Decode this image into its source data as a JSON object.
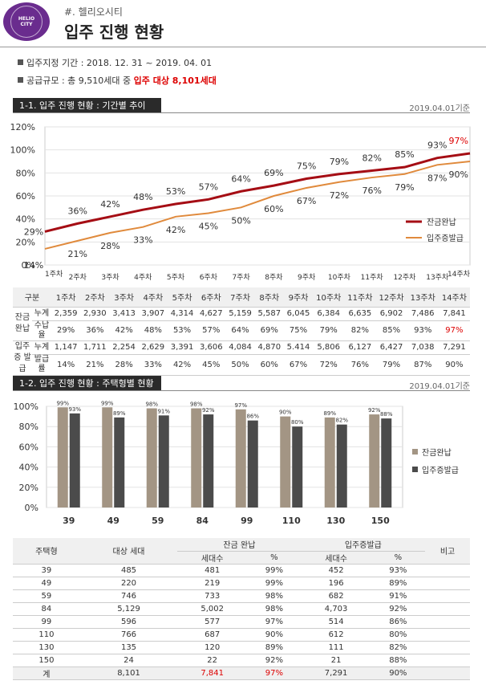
{
  "header": {
    "logo_lines": [
      "HELIO",
      "CITY"
    ],
    "brand": "#. 헬리오시티",
    "title": "입주 진행 현황"
  },
  "info": {
    "period": "입주지정 기간 : 2018. 12. 31 ~ 2019. 04. 01",
    "scale_prefix": "공급규모 : 총 9,510세대 중 ",
    "scale_highlight": "입주 대상 8,101세대"
  },
  "section1": {
    "label": "1-1. 입주 진행 현황 : 기간별 추이",
    "date": "2019.04.01기준"
  },
  "section2": {
    "label": "1-2. 입주 진행 현황 : 주택형별 현황",
    "date": "2019.04.01기준"
  },
  "chart_data": [
    {
      "type": "line",
      "categories": [
        "1주차",
        "2주차",
        "3주차",
        "4주차",
        "5주차",
        "6주차",
        "7주차",
        "8주차",
        "9주차",
        "10주차",
        "11주차",
        "12주차",
        "13주차",
        "14주차"
      ],
      "series": [
        {
          "name": "잔금완납",
          "values": [
            29,
            36,
            42,
            48,
            53,
            57,
            64,
            69,
            75,
            79,
            82,
            85,
            93,
            97
          ],
          "color": "#a50d14"
        },
        {
          "name": "입주증발급",
          "values": [
            14,
            21,
            28,
            33,
            42,
            45,
            50,
            60,
            67,
            72,
            76,
            79,
            87,
            90
          ],
          "color": "#e08a3c"
        }
      ],
      "ylim": [
        0,
        120
      ],
      "yticks": [
        "0%",
        "20%",
        "40%",
        "60%",
        "80%",
        "100%",
        "120%"
      ],
      "grid": true,
      "legend": "right"
    },
    {
      "type": "bar",
      "categories": [
        "39",
        "49",
        "59",
        "84",
        "99",
        "110",
        "130",
        "150"
      ],
      "series": [
        {
          "name": "잔금완납",
          "values": [
            99,
            99,
            98,
            98,
            97,
            90,
            89,
            92
          ],
          "color": "#a39584"
        },
        {
          "name": "입주증발급",
          "values": [
            93,
            89,
            91,
            92,
            86,
            80,
            82,
            88
          ],
          "color": "#4b4b4b"
        }
      ],
      "ylim": [
        0,
        100
      ],
      "yticks": [
        "0%",
        "20%",
        "40%",
        "60%",
        "80%",
        "100%"
      ],
      "grid": true,
      "legend": "right"
    }
  ],
  "table1": {
    "header": [
      "구분",
      "1주차",
      "2주차",
      "3주차",
      "4주차",
      "5주차",
      "6주차",
      "7주차",
      "8주차",
      "9주차",
      "10주차",
      "11주차",
      "12주차",
      "13주차",
      "14주차"
    ],
    "groups": [
      {
        "label": "잔금 완납",
        "rows": [
          {
            "sub": "누계",
            "cells": [
              "2,359",
              "2,930",
              "3,413",
              "3,907",
              "4,314",
              "4,627",
              "5,159",
              "5,587",
              "6,045",
              "6,384",
              "6,635",
              "6,902",
              "7,486",
              "7,841"
            ]
          },
          {
            "sub": "수납율",
            "cells": [
              "29%",
              "36%",
              "42%",
              "48%",
              "53%",
              "57%",
              "64%",
              "69%",
              "75%",
              "79%",
              "82%",
              "85%",
              "93%",
              "97%"
            ]
          }
        ]
      },
      {
        "label": "입주증 발급",
        "rows": [
          {
            "sub": "누계",
            "cells": [
              "1,147",
              "1,711",
              "2,254",
              "2,629",
              "3,391",
              "3,606",
              "4,084",
              "4,870",
              "5.414",
              "5,806",
              "6,127",
              "6,427",
              "7,038",
              "7,291"
            ]
          },
          {
            "sub": "발급률",
            "cells": [
              "14%",
              "21%",
              "28%",
              "33%",
              "42%",
              "45%",
              "50%",
              "60%",
              "67%",
              "72%",
              "76%",
              "79%",
              "87%",
              "90%"
            ]
          }
        ]
      }
    ]
  },
  "table2": {
    "h_type": "주택형",
    "h_target": "대상 세대",
    "h_paid": "잔금 완납",
    "h_cert": "입주증발급",
    "h_note": "비고",
    "h_units": "세대수",
    "h_pct": "%",
    "rows": [
      [
        "39",
        "485",
        "481",
        "99%",
        "452",
        "93%"
      ],
      [
        "49",
        "220",
        "219",
        "99%",
        "196",
        "89%"
      ],
      [
        "59",
        "746",
        "733",
        "98%",
        "682",
        "91%"
      ],
      [
        "84",
        "5,129",
        "5,002",
        "98%",
        "4,703",
        "92%"
      ],
      [
        "99",
        "596",
        "577",
        "97%",
        "514",
        "86%"
      ],
      [
        "110",
        "766",
        "687",
        "90%",
        "612",
        "80%"
      ],
      [
        "130",
        "135",
        "120",
        "89%",
        "111",
        "82%"
      ],
      [
        "150",
        "24",
        "22",
        "92%",
        "21",
        "88%"
      ]
    ],
    "total": [
      "계",
      "8,101",
      "7,841",
      "97%",
      "7,291",
      "90%"
    ]
  }
}
